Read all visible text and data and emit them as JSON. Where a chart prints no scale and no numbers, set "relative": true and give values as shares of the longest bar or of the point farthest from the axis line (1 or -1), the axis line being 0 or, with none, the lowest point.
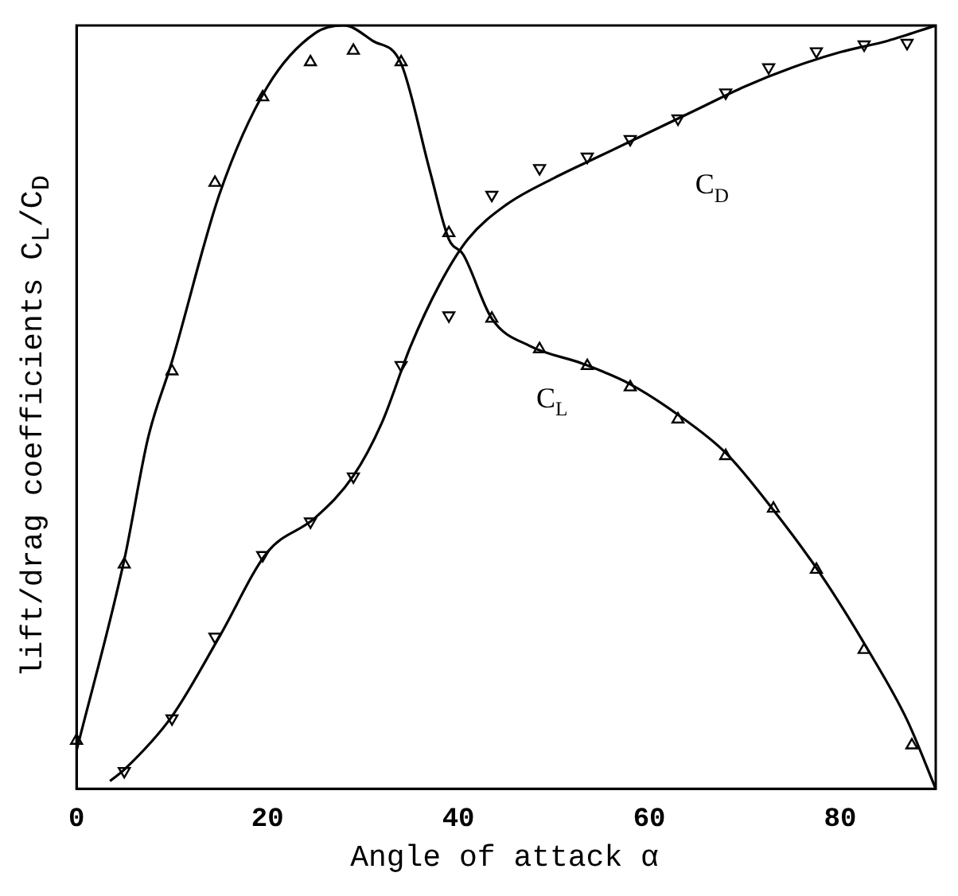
{
  "chart_data": {
    "type": "line",
    "relative": true,
    "xlabel": "Angle of attack α",
    "ylabel": "lift/drag coefficients C$_{L}$/C$_{D}$",
    "xlim": [
      0,
      90
    ],
    "xticks": [
      0,
      20,
      40,
      60,
      80
    ],
    "grid": false,
    "legend": false,
    "series": [
      {
        "type": "scatter",
        "marker": "triangle",
        "color": "#000000",
        "x": [
          0,
          5,
          10,
          14.5,
          19.5,
          24.5,
          29,
          34,
          39,
          43.5,
          48.5,
          53.5,
          58,
          63,
          68,
          73,
          77.5,
          82.5,
          87.5
        ],
        "values": [
          0.063,
          0.294,
          0.547,
          0.794,
          0.906,
          0.952,
          0.967,
          0.952,
          0.728,
          0.616,
          0.576,
          0.554,
          0.526,
          0.484,
          0.436,
          0.367,
          0.287,
          0.182,
          0.057
        ]
      },
      {
        "type": "line",
        "marker": "none",
        "color": "#000000",
        "x": [
          0,
          5,
          7.5,
          10,
          15,
          20,
          25,
          28,
          31,
          34,
          37,
          39,
          40.5,
          43.5,
          47.5,
          53,
          58,
          63,
          68,
          73,
          78,
          83,
          87,
          90
        ],
        "values": [
          0.05,
          0.3,
          0.46,
          0.56,
          0.78,
          0.92,
          0.99,
          1.0,
          0.98,
          0.95,
          0.81,
          0.72,
          0.7,
          0.616,
          0.58,
          0.557,
          0.53,
          0.49,
          0.44,
          0.365,
          0.28,
          0.18,
          0.09,
          0
        ]
      },
      {
        "type": "scatter",
        "marker": "triangle",
        "color": "#000000",
        "x": [
          5,
          10,
          14.5,
          19.5,
          24.5,
          29,
          34,
          39,
          43.5,
          48.5,
          53.5,
          58,
          63,
          68,
          72.5,
          77.5,
          82.5,
          87
        ],
        "values": [
          0.023,
          0.092,
          0.199,
          0.306,
          0.35,
          0.409,
          0.555,
          0.62,
          0.778,
          0.813,
          0.828,
          0.851,
          0.878,
          0.912,
          0.945,
          0.966,
          0.975,
          0.977
        ]
      },
      {
        "type": "line",
        "marker": "none",
        "color": "#000000",
        "x": [
          3.5,
          5,
          10,
          15,
          20,
          25,
          29,
          32,
          35,
          38,
          41,
          45,
          50,
          55,
          60,
          65,
          70,
          75,
          80,
          85,
          90
        ],
        "values": [
          0.01,
          0.025,
          0.095,
          0.2,
          0.31,
          0.355,
          0.41,
          0.48,
          0.58,
          0.66,
          0.72,
          0.765,
          0.8,
          0.83,
          0.86,
          0.89,
          0.92,
          0.945,
          0.965,
          0.98,
          1.0
        ]
      }
    ],
    "annotations": [
      "C$_{L}$",
      "C$_{D}$"
    ]
  }
}
